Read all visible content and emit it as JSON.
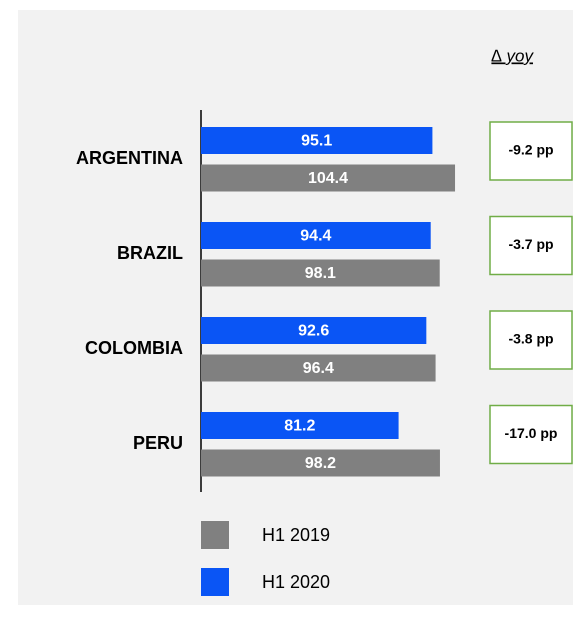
{
  "chart_data": {
    "type": "hbar",
    "categories": [
      "ARGENTINA",
      "BRAZIL",
      "COLOMBIA",
      "PERU"
    ],
    "series": [
      {
        "name": "H1 2019",
        "color": "#808080",
        "values": [
          104.4,
          98.1,
          96.4,
          98.2
        ]
      },
      {
        "name": "H1 2020",
        "color": "#0a55f5",
        "values": [
          95.1,
          94.4,
          92.6,
          81.2
        ]
      }
    ],
    "xlim": [
      0,
      150
    ],
    "yoy": {
      "title": "∆ yoy",
      "values": [
        -9.2,
        -3.7,
        -3.8,
        -17.0
      ],
      "value_labels": [
        "-9.2 pp",
        "-3.7 pp",
        "-3.8 pp",
        "-17.0 pp"
      ],
      "color": "#70ad47"
    }
  }
}
